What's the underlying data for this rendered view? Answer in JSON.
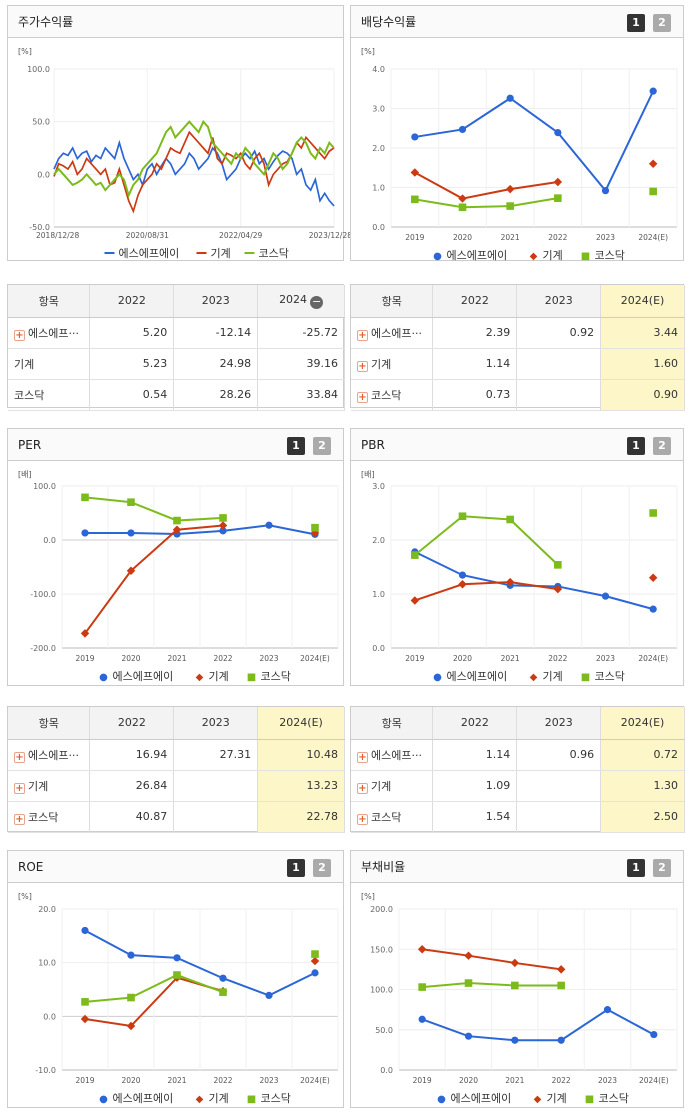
{
  "legend_markers": [
    "●",
    "◆",
    "■"
  ],
  "series_colors": [
    "#2a66d6",
    "#cc3a12",
    "#7dbb1c"
  ],
  "stock_chart": {
    "title": "주가수익률",
    "unit": "[%]",
    "yticks": [
      "100.0",
      "50.0",
      "0.0",
      "-50.0"
    ],
    "xticks": [
      "2018/12/28",
      "2020/08/31",
      "2022/04/29",
      "2023/12/28"
    ],
    "legend": [
      "에스에프에이",
      "기계",
      "코스닥"
    ],
    "chart_data": {
      "type": "line",
      "title": "",
      "ylabel": "[%]",
      "ylim": [
        -50,
        100
      ],
      "x": [
        0,
        1,
        2,
        3,
        4,
        5,
        6,
        7,
        8,
        9,
        10,
        11,
        12,
        13,
        14,
        15,
        16,
        17,
        18,
        19,
        20,
        21,
        22,
        23,
        24,
        25,
        26,
        27,
        28,
        29,
        30,
        31,
        32,
        33,
        34,
        35,
        36,
        37,
        38,
        39,
        40,
        41,
        42,
        43,
        44,
        45,
        46,
        47,
        48,
        49,
        50,
        51,
        52,
        53,
        54,
        55,
        56,
        57,
        58,
        59,
        60
      ],
      "series": [
        {
          "name": "에스에프에이",
          "values": [
            5,
            15,
            20,
            18,
            25,
            15,
            20,
            22,
            12,
            18,
            15,
            25,
            20,
            15,
            30,
            15,
            5,
            -5,
            0,
            -10,
            5,
            10,
            0,
            8,
            15,
            10,
            0,
            5,
            10,
            20,
            15,
            5,
            10,
            15,
            25,
            20,
            10,
            -5,
            0,
            5,
            15,
            20,
            15,
            22,
            10,
            15,
            5,
            12,
            18,
            22,
            20,
            15,
            0,
            5,
            -10,
            -15,
            -5,
            -25,
            -18,
            -25,
            -30
          ]
        },
        {
          "name": "기계",
          "values": [
            -2,
            10,
            8,
            5,
            12,
            0,
            5,
            15,
            10,
            5,
            0,
            5,
            -10,
            -8,
            5,
            -10,
            -25,
            -35,
            -20,
            -10,
            -5,
            0,
            10,
            5,
            15,
            25,
            22,
            20,
            30,
            40,
            35,
            30,
            25,
            20,
            35,
            15,
            10,
            20,
            18,
            15,
            20,
            10,
            5,
            15,
            20,
            10,
            -10,
            0,
            5,
            10,
            12,
            20,
            30,
            25,
            35,
            30,
            25,
            20,
            15,
            22,
            25
          ]
        },
        {
          "name": "코스닥",
          "values": [
            0,
            5,
            0,
            -5,
            -10,
            -8,
            -5,
            0,
            -5,
            -10,
            -8,
            -15,
            -10,
            -5,
            0,
            -5,
            -20,
            -10,
            -5,
            5,
            10,
            15,
            20,
            30,
            40,
            45,
            35,
            40,
            45,
            50,
            45,
            40,
            50,
            45,
            30,
            25,
            20,
            15,
            10,
            20,
            15,
            25,
            20,
            10,
            5,
            0,
            10,
            20,
            15,
            5,
            10,
            20,
            30,
            35,
            30,
            20,
            15,
            25,
            20,
            30,
            25
          ]
        }
      ]
    }
  },
  "bar1": {
    "title": "배당수익률",
    "unit": "[%]",
    "btn1": "1",
    "btn2": "2",
    "yticks": [
      "4.0",
      "3.0",
      "2.0",
      "1.0",
      "0.0"
    ],
    "categories": [
      "2019",
      "2020",
      "2021",
      "2022",
      "2023",
      "2024(E)"
    ],
    "legend": [
      "에스에프에이",
      "기계",
      "코스닥"
    ],
    "chart_data": {
      "type": "line",
      "title": "",
      "ylabel": "[%]",
      "ylim": [
        0,
        4
      ],
      "categories": [
        "2019",
        "2020",
        "2021",
        "2022",
        "2023",
        "2024(E)"
      ],
      "series": [
        {
          "name": "에스에프에이",
          "values": [
            2.28,
            2.47,
            3.26,
            2.39,
            0.92,
            3.44
          ]
        },
        {
          "name": "기계",
          "values": [
            1.38,
            0.72,
            0.96,
            1.14,
            null,
            1.6
          ]
        },
        {
          "name": "코스닥",
          "values": [
            0.7,
            0.5,
            0.53,
            0.73,
            null,
            0.9
          ]
        }
      ]
    }
  },
  "tbl_stock": {
    "headers": [
      "항목",
      "2022",
      "2023",
      "2024"
    ],
    "rows": [
      {
        "name": "에스에프···",
        "v": [
          "5.20",
          "-12.14",
          "-25.72"
        ]
      },
      {
        "name": "기계",
        "v": [
          "5.23",
          "24.98",
          "39.16"
        ]
      },
      {
        "name": "코스닥",
        "v": [
          "0.54",
          "28.26",
          "33.84"
        ]
      }
    ]
  },
  "tbl_div": {
    "headers": [
      "항목",
      "2022",
      "2023",
      "2024(E)"
    ],
    "rows": [
      {
        "name": "에스에프···",
        "v": [
          "2.39",
          "0.92",
          "3.44"
        ]
      },
      {
        "name": "기계",
        "v": [
          "1.14",
          "",
          "1.60"
        ]
      },
      {
        "name": "코스닥",
        "v": [
          "0.73",
          "",
          "0.90"
        ]
      }
    ]
  },
  "per": {
    "title": "PER",
    "unit": "[배]",
    "btn1": "1",
    "btn2": "2",
    "yticks": [
      "100.0",
      "0.0",
      "-100.0",
      "-200.0"
    ],
    "categories": [
      "2019",
      "2020",
      "2021",
      "2022",
      "2023",
      "2024(E)"
    ],
    "legend": [
      "에스에프에이",
      "기계",
      "코스닥"
    ],
    "chart_data": {
      "type": "line",
      "title": "",
      "ylabel": "[배]",
      "ylim": [
        -200,
        100
      ],
      "categories": [
        "2019",
        "2020",
        "2021",
        "2022",
        "2023",
        "2024(E)"
      ],
      "series": [
        {
          "name": "에스에프에이",
          "values": [
            13,
            13,
            11,
            16.94,
            27.31,
            10.48
          ]
        },
        {
          "name": "기계",
          "values": [
            -173,
            -57,
            19,
            26.84,
            null,
            13.23
          ]
        },
        {
          "name": "코스닥",
          "values": [
            79,
            70,
            36,
            40.87,
            null,
            22.78
          ]
        }
      ]
    }
  },
  "pbr": {
    "title": "PBR",
    "unit": "[배]",
    "btn1": "1",
    "btn2": "2",
    "yticks": [
      "3.0",
      "2.0",
      "1.0",
      "0.0"
    ],
    "categories": [
      "2019",
      "2020",
      "2021",
      "2022",
      "2023",
      "2024(E)"
    ],
    "legend": [
      "에스에프에이",
      "기계",
      "코스닥"
    ],
    "chart_data": {
      "type": "line",
      "title": "",
      "ylabel": "[배]",
      "ylim": [
        0,
        3
      ],
      "categories": [
        "2019",
        "2020",
        "2021",
        "2022",
        "2023",
        "2024(E)"
      ],
      "series": [
        {
          "name": "에스에프에이",
          "values": [
            1.78,
            1.35,
            1.16,
            1.14,
            0.96,
            0.72
          ]
        },
        {
          "name": "기계",
          "values": [
            0.88,
            1.18,
            1.22,
            1.09,
            null,
            1.3
          ]
        },
        {
          "name": "코스닥",
          "values": [
            1.72,
            2.44,
            2.38,
            1.54,
            null,
            2.5
          ]
        }
      ]
    }
  },
  "tbl_per": {
    "headers": [
      "항목",
      "2022",
      "2023",
      "2024(E)"
    ],
    "rows": [
      {
        "name": "에스에프···",
        "v": [
          "16.94",
          "27.31",
          "10.48"
        ]
      },
      {
        "name": "기계",
        "v": [
          "26.84",
          "",
          "13.23"
        ]
      },
      {
        "name": "코스닥",
        "v": [
          "40.87",
          "",
          "22.78"
        ]
      }
    ]
  },
  "tbl_pbr": {
    "headers": [
      "항목",
      "2022",
      "2023",
      "2024(E)"
    ],
    "rows": [
      {
        "name": "에스에프···",
        "v": [
          "1.14",
          "0.96",
          "0.72"
        ]
      },
      {
        "name": "기계",
        "v": [
          "1.09",
          "",
          "1.30"
        ]
      },
      {
        "name": "코스닥",
        "v": [
          "1.54",
          "",
          "2.50"
        ]
      }
    ]
  },
  "roe": {
    "title": "ROE",
    "unit": "[%]",
    "btn1": "1",
    "btn2": "2",
    "yticks": [
      "20.0",
      "10.0",
      "0.0",
      "-10.0"
    ],
    "categories": [
      "2019",
      "2020",
      "2021",
      "2022",
      "2023",
      "2024(E)"
    ],
    "legend": [
      "에스에프에이",
      "기계",
      "코스닥"
    ],
    "chart_data": {
      "type": "line",
      "title": "",
      "ylabel": "[%]",
      "ylim": [
        -10,
        20
      ],
      "categories": [
        "2019",
        "2020",
        "2021",
        "2022",
        "2023",
        "2024(E)"
      ],
      "series": [
        {
          "name": "에스에프에이",
          "values": [
            16,
            11.4,
            10.9,
            7.1,
            3.9,
            8.1
          ]
        },
        {
          "name": "기계",
          "values": [
            -0.5,
            -1.8,
            7.2,
            4.7,
            null,
            10.3
          ]
        },
        {
          "name": "코스닥",
          "values": [
            2.7,
            3.5,
            7.7,
            4.5,
            null,
            11.6
          ]
        }
      ]
    }
  },
  "debt": {
    "title": "부채비율",
    "unit": "[%]",
    "btn1": "1",
    "btn2": "2",
    "yticks": [
      "200.0",
      "150.0",
      "100.0",
      "50.0",
      "0.0"
    ],
    "categories": [
      "2019",
      "2020",
      "2021",
      "2022",
      "2023",
      "2024(E)"
    ],
    "legend": [
      "에스에프에이",
      "기계",
      "코스닥"
    ],
    "chart_data": {
      "type": "line",
      "title": "",
      "ylabel": "[%]",
      "ylim": [
        0,
        200
      ],
      "categories": [
        "2019",
        "2020",
        "2021",
        "2022",
        "2023",
        "2024(E)"
      ],
      "series": [
        {
          "name": "에스에프에이",
          "values": [
            63,
            42,
            37,
            37,
            75,
            44
          ]
        },
        {
          "name": "기계",
          "values": [
            150,
            142,
            133,
            125,
            null,
            null
          ]
        },
        {
          "name": "코스닥",
          "values": [
            103,
            108,
            105,
            105,
            null,
            null
          ]
        }
      ]
    }
  }
}
